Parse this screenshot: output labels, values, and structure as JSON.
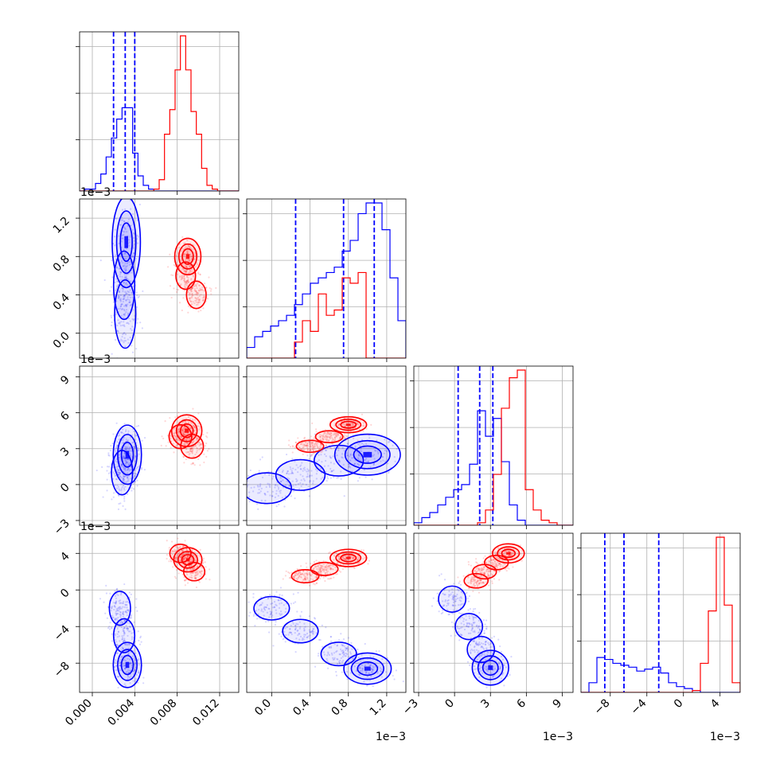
{
  "chart_data": {
    "type": "corner",
    "params": [
      {
        "ticks": [
          0.0,
          0.004,
          0.008,
          0.012
        ],
        "tick_labels": [
          "0.000",
          "0.004",
          "0.008",
          "0.012"
        ],
        "range": [
          -0.0012,
          0.0138
        ],
        "offset_label": ""
      },
      {
        "ticks": [
          0.0,
          0.4,
          0.8,
          1.2
        ],
        "tick_labels": [
          "0.0",
          "0.4",
          "0.8",
          "1.2"
        ],
        "range": [
          -0.26,
          1.4
        ],
        "offset_label": "1e−3"
      },
      {
        "ticks": [
          -3,
          0,
          3,
          6,
          9
        ],
        "tick_labels": [
          "−3",
          "0",
          "3",
          "6",
          "9"
        ],
        "range": [
          -3.4,
          9.9
        ],
        "offset_label": "1e−3"
      },
      {
        "ticks": [
          -8,
          -4,
          0,
          4
        ],
        "tick_labels": [
          "−8",
          "−4",
          "0",
          "4"
        ],
        "range": [
          -11.2,
          6.2
        ],
        "offset_label": "1e−3"
      }
    ],
    "series": [
      {
        "color": "#0000ff",
        "quantiles": [
          [
            0.002,
            0.0031,
            0.004
          ],
          [
            0.25,
            0.75,
            1.07
          ],
          [
            0.3,
            2.1,
            3.2
          ],
          [
            -8.6,
            -6.5,
            -2.7
          ]
        ],
        "hists": [
          {
            "edges": [
              -0.0012,
              0.0138
            ],
            "counts": [
              0,
              1,
              1,
              4,
              9,
              18,
              28,
              38,
              44,
              44,
              20,
              8,
              3,
              1,
              0,
              0,
              0,
              0,
              0,
              0,
              0,
              0,
              0,
              0,
              0,
              0,
              0,
              0,
              0,
              0
            ]
          },
          {
            "edges": [
              -0.26,
              1.4
            ],
            "counts": [
              2,
              4,
              5,
              6,
              7,
              8,
              10,
              12,
              14,
              15,
              16,
              17,
              20,
              22,
              27,
              29,
              29,
              24,
              15,
              7
            ]
          },
          {
            "edges": [
              -3.4,
              9.9
            ],
            "counts": [
              1,
              3,
              5,
              8,
              11,
              14,
              16,
              24,
              45,
              35,
              42,
              25,
              8,
              2,
              0,
              0,
              0,
              0,
              0,
              0
            ]
          },
          {
            "edges": [
              -11.2,
              6.2
            ],
            "counts": [
              0,
              5,
              18,
              17,
              15,
              14,
              13,
              11,
              12,
              13,
              10,
              5,
              3,
              2,
              1,
              0,
              0,
              0,
              0,
              0
            ]
          }
        ],
        "clouds": {
          "1-0": {
            "centers": [
              [
                0.0032,
                0.95
              ],
              [
                0.003,
                0.5
              ],
              [
                0.0031,
                0.2
              ]
            ],
            "spread": [
              0.0007,
              0.25
            ]
          },
          "2-0": {
            "centers": [
              [
                0.0033,
                2.5
              ],
              [
                0.0028,
                1.0
              ]
            ],
            "spread": [
              0.0007,
              1.3
            ]
          },
          "2-1": {
            "centers": [
              [
                1.0,
                2.5
              ],
              [
                0.7,
                2.0
              ],
              [
                0.3,
                0.8
              ],
              [
                -0.05,
                -0.3
              ]
            ],
            "spread": [
              0.18,
              0.9
            ]
          },
          "3-0": {
            "centers": [
              [
                0.0033,
                -8.2
              ],
              [
                0.003,
                -5.0
              ],
              [
                0.0026,
                -2.0
              ]
            ],
            "spread": [
              0.0007,
              1.3
            ]
          },
          "3-1": {
            "centers": [
              [
                1.0,
                -8.6
              ],
              [
                0.7,
                -7.0
              ],
              [
                0.3,
                -4.5
              ],
              [
                0.0,
                -2.0
              ]
            ],
            "spread": [
              0.13,
              0.9
            ]
          },
          "3-2": {
            "centers": [
              [
                3.0,
                -8.5
              ],
              [
                2.2,
                -6.5
              ],
              [
                1.2,
                -4.0
              ],
              [
                -0.2,
                -1.0
              ]
            ],
            "spread": [
              0.8,
              1.0
            ]
          }
        }
      },
      {
        "color": "#ff0000",
        "quantiles": null,
        "hists": [
          {
            "edges": [
              -0.0012,
              0.0138
            ],
            "counts": [
              0,
              0,
              0,
              0,
              0,
              0,
              0,
              0,
              0,
              0,
              0,
              0,
              0,
              0,
              1,
              6,
              30,
              43,
              64,
              82,
              64,
              42,
              30,
              12,
              3,
              1,
              0,
              0,
              0,
              0
            ]
          },
          {
            "edges": [
              -0.26,
              1.4
            ],
            "counts": [
              0,
              0,
              0,
              0,
              0,
              0,
              3,
              7,
              5,
              12,
              8,
              9,
              15,
              14,
              16,
              0,
              0,
              0,
              0,
              0
            ]
          },
          {
            "edges": [
              -3.4,
              9.9
            ],
            "counts": [
              0,
              0,
              0,
              0,
              0,
              0,
              0,
              0,
              1,
              6,
              20,
              46,
              58,
              61,
              14,
              6,
              2,
              1,
              0,
              0
            ]
          },
          {
            "edges": [
              -11.2,
              6.2
            ],
            "counts": [
              0,
              0,
              0,
              0,
              0,
              0,
              0,
              0,
              0,
              0,
              0,
              0,
              0,
              0,
              1,
              15,
              42,
              80,
              45,
              5
            ]
          }
        ],
        "clouds": {
          "1-0": {
            "centers": [
              [
                0.009,
                0.8
              ],
              [
                0.0088,
                0.6
              ],
              [
                0.0098,
                0.4
              ]
            ],
            "spread": [
              0.00065,
              0.1
            ]
          },
          "2-0": {
            "centers": [
              [
                0.0089,
                4.5
              ],
              [
                0.0094,
                3.2
              ],
              [
                0.0083,
                4.0
              ]
            ],
            "spread": [
              0.00075,
              0.7
            ]
          },
          "2-1": {
            "centers": [
              [
                0.8,
                5.0
              ],
              [
                0.6,
                4.0
              ],
              [
                0.4,
                3.2
              ]
            ],
            "spread": [
              0.1,
              0.35
            ]
          },
          "3-0": {
            "centers": [
              [
                0.009,
                3.3
              ],
              [
                0.0096,
                2.0
              ],
              [
                0.0083,
                4.0
              ]
            ],
            "spread": [
              0.0007,
              0.7
            ]
          },
          "3-1": {
            "centers": [
              [
                0.8,
                3.5
              ],
              [
                0.55,
                2.3
              ],
              [
                0.35,
                1.5
              ]
            ],
            "spread": [
              0.1,
              0.5
            ]
          },
          "3-2": {
            "centers": [
              [
                4.5,
                4.0
              ],
              [
                3.5,
                3.0
              ],
              [
                2.5,
                2.0
              ],
              [
                1.8,
                1.0
              ]
            ],
            "spread": [
              0.7,
              0.55
            ]
          }
        }
      }
    ]
  }
}
